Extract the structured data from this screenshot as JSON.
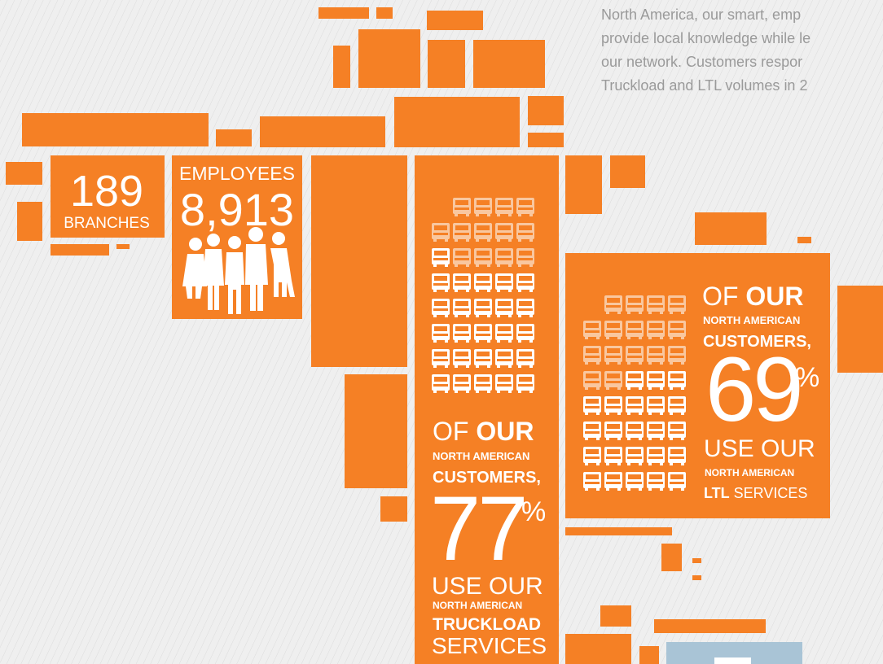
{
  "intro": {
    "lines": [
      "North America, our smart, emp",
      "provide local knowledge while le",
      "our network. Customers respor",
      "Truckload and LTL volumes in 2"
    ]
  },
  "branches": {
    "number": "189",
    "label": "BRANCHES"
  },
  "employees": {
    "label": "EMPLOYEES",
    "number": "8,913"
  },
  "truckload": {
    "of": "OF",
    "our": "OUR",
    "region": "NORTH AMERICAN",
    "customers": "CUSTOMERS,",
    "percent": "77",
    "percent_sign": "%",
    "use_our": "USE OUR",
    "region_2": "NORTH AMERICAN",
    "service": "TRUCKLOAD",
    "services": "SERVICES"
  },
  "ltl": {
    "of": "OF",
    "our": "OUR",
    "region": "NORTH AMERICAN",
    "customers": "CUSTOMERS,",
    "percent": "69",
    "percent_sign": "%",
    "use_our": "USE OUR",
    "region_2": "NORTH AMERICAN",
    "service": "LTL",
    "services": "SERVICES"
  }
}
